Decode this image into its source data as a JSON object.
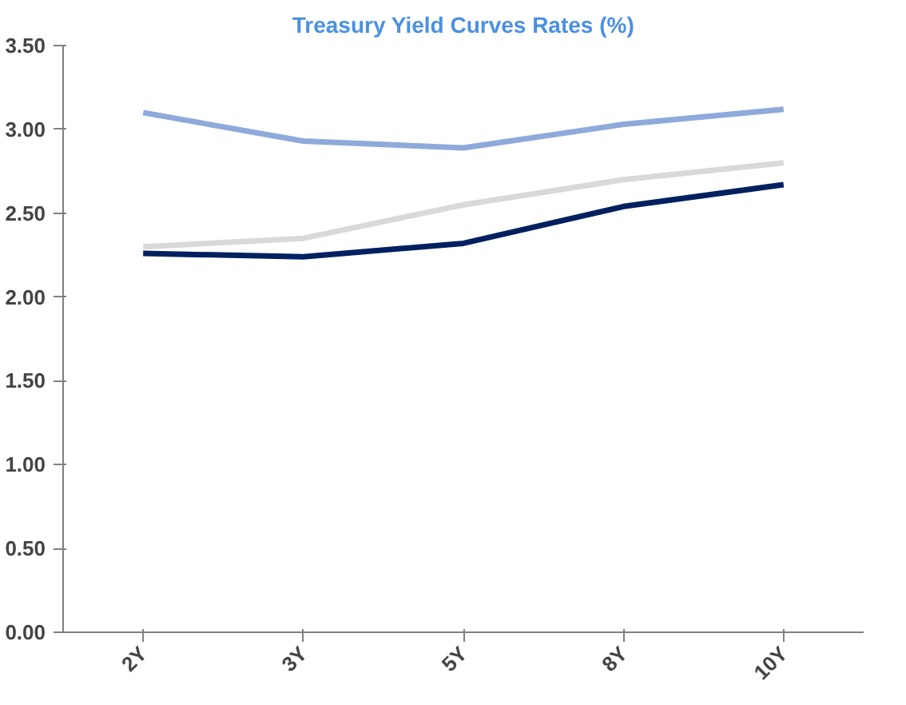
{
  "chart_data": {
    "type": "line",
    "title": "Treasury Yield Curves Rates (%)",
    "categories": [
      "2Y",
      "3Y",
      "5Y",
      "8Y",
      "10Y"
    ],
    "series": [
      {
        "color": "#8eaadb",
        "values": [
          3.1,
          2.93,
          2.89,
          3.03,
          3.12
        ]
      },
      {
        "color": "#d9d9d9",
        "values": [
          2.3,
          2.35,
          2.55,
          2.7,
          2.8
        ]
      },
      {
        "color": "#002060",
        "values": [
          2.26,
          2.24,
          2.32,
          2.54,
          2.67
        ]
      }
    ],
    "ylim": [
      0,
      3.5
    ],
    "yticks": [
      {
        "value": 0,
        "label": "0.00"
      },
      {
        "value": 0.5,
        "label": "0.50"
      },
      {
        "value": 1,
        "label": "1.00"
      },
      {
        "value": 1.5,
        "label": "1.50"
      },
      {
        "value": 2,
        "label": "2.00"
      },
      {
        "value": 2.5,
        "label": "2.50"
      },
      {
        "value": 3,
        "label": "3.00"
      },
      {
        "value": 3.5,
        "label": "3.50"
      }
    ],
    "marker": "none",
    "line_style": "solid"
  }
}
